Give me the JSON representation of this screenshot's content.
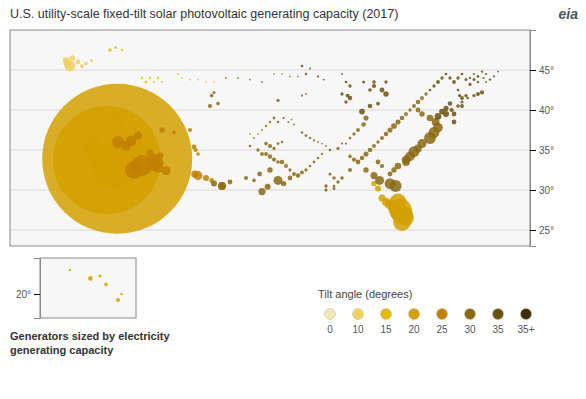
{
  "chart_data": [
    {
      "type": "bubble",
      "title": "U.S. utility-scale fixed-tilt solar photovoltaic generating capacity (2017)",
      "annotations": [
        "Generators sized by electricity",
        "generating capacity",
        "Tilt angle (degrees)",
        "eia"
      ],
      "series": [
        {
          "name": "0",
          "color": "#f5e8b0",
          "x": [],
          "values": [],
          "sizes": []
        },
        {
          "name": "10",
          "color": "#f0d060",
          "x": [
            -122.5,
            -122.8,
            -123.0,
            -122.2,
            -121.5,
            -121.0,
            -120.5,
            -119.8
          ],
          "values": [
            45.5,
            45.8,
            46.2,
            46.5,
            46.0,
            45.5,
            45.8,
            46.2
          ],
          "sizes": [
            180,
            140,
            110,
            90,
            80,
            70,
            60,
            50
          ]
        },
        {
          "name": "15",
          "color": "#e8b800",
          "x": [
            -121.3,
            -121.4,
            -120.8,
            -121.0,
            -122.0,
            -117.5,
            -116.8,
            -113.0,
            -116.0,
            -113.5,
            -112.5,
            -111.5,
            -112.0,
            -111.0,
            -109.0,
            -108.5,
            -107.5,
            -106.5,
            -105.5,
            -104.5
          ],
          "values": [
            38.7,
            37.0,
            39.1,
            37.5,
            38.5,
            47.5,
            47.8,
            43.5,
            47.5,
            44.0,
            44.0,
            44.0,
            43.5,
            43.5,
            44.5,
            44.0,
            43.8,
            43.8,
            43.5,
            43.5
          ],
          "sizes": [
            150,
            100,
            90,
            80,
            60,
            55,
            45,
            42,
            38,
            38,
            38,
            38,
            32,
            32,
            32,
            28,
            28,
            28,
            28,
            28
          ]
        },
        {
          "name": "20",
          "color": "#d4a000",
          "x": [
            -116.6,
            -117.9,
            -117.1,
            -115.0,
            -116.96,
            -116.7,
            -118.5,
            -81.2,
            -116.02,
            -114.6,
            -80.8,
            -117.3,
            -81.0,
            -117.55,
            -81.5,
            -80.5,
            -116.2,
            -116.3,
            -119.6,
            -81.5,
            -115.47,
            -115.6,
            -82.0,
            -117.0,
            -118.9,
            -120.2,
            -82.5,
            -114.98,
            -83.0,
            -119.2,
            -116.5,
            -83.5,
            -120.0,
            -116.0,
            -84.0,
            -116.6,
            -84.5,
            -119.5,
            -117.1,
            -119.8
          ],
          "values": [
            33.9,
            33.75,
            32.85,
            33.9,
            33.83,
            33.0,
            34.05,
            27.5,
            34.5,
            35.2,
            26.8,
            32.5,
            26.0,
            33.42,
            28.5,
            26.5,
            33.65,
            33.3,
            35.7,
            27.0,
            33.73,
            32.8,
            27.8,
            34.57,
            33.8,
            34.8,
            28.2,
            34.08,
            28.5,
            35.45,
            35.0,
            29.0,
            35.3,
            38.4,
            30.2,
            39.0,
            30.8,
            36.1,
            39.4,
            36.8
          ],
          "sizes": [
            2500,
            1800,
            700,
            600,
            580,
            500,
            400,
            380,
            350,
            350,
            320,
            300,
            300,
            280,
            280,
            260,
            250,
            250,
            250,
            240,
            200,
            200,
            200,
            180,
            180,
            180,
            170,
            150,
            140,
            130,
            120,
            120,
            100,
            100,
            100,
            90,
            90,
            80,
            80,
            70
          ]
        },
        {
          "name": "25",
          "color": "#c08000",
          "x": [
            -113.5,
            -114.5,
            -111.85,
            -112.1,
            -116.5,
            -111.5,
            -114.9,
            -115.5,
            -110.5,
            -106.5,
            -114.0,
            -103.5,
            -112.5,
            -106.9,
            -111.2,
            -105.5,
            -111.0,
            -104.8,
            -107.0,
            -107.5,
            -106.8,
            -109.5,
            -106.5
          ],
          "values": [
            33.05,
            32.5,
            33.45,
            33.3,
            36.0,
            32.85,
            36.1,
            35.5,
            32.4,
            31.8,
            36.8,
            30.5,
            34.6,
            32.0,
            34.3,
            31.5,
            37.5,
            31.2,
            35.4,
            37.5,
            35.0,
            37.2,
            34.5
          ],
          "sizes": [
            350,
            300,
            280,
            220,
            200,
            180,
            180,
            160,
            150,
            150,
            140,
            130,
            120,
            120,
            100,
            100,
            90,
            80,
            80,
            70,
            70,
            60,
            60
          ]
        },
        {
          "name": "30",
          "color": "#8b6914",
          "x": [
            -81.8,
            -77.5,
            -82.5,
            -79.5,
            -77.0,
            -80.0,
            -76.5,
            -96.5,
            -83.8,
            -78.5,
            -80.5,
            -103.5,
            -79.0,
            -76.8,
            -80.5,
            -98.5,
            -84.5,
            -77.5,
            -81.5,
            -97.8,
            -104.5,
            -82.0,
            -95.8,
            -97.5,
            -82.0,
            -85.5,
            -78.5,
            -85.5,
            -82.5,
            -81.5,
            -85.5,
            -95.0,
            -102.5,
            -98.8,
            -82.5,
            -84.0,
            -79.0,
            -86.5,
            -86.0,
            -85.0,
            -83.0,
            -81.0,
            -79.0,
            -97.5,
            -94.0,
            -96.0,
            -85.8,
            -100.5,
            -97.0,
            -83.5,
            -87.0,
            -105.0,
            -87.5,
            -97.5,
            -84.5,
            -83.5,
            -80.5,
            -79.5,
            -78.5,
            -98.0,
            -98.5,
            -93.5,
            -94.5,
            -95.5,
            -86.5,
            -99.5,
            -96.5,
            -87.5,
            -104.8,
            -104.0,
            -90.5,
            -88.5,
            -98.0,
            -89.5,
            -96.5,
            -84.0,
            -80.0,
            -78.0,
            -97.0,
            -99.0,
            -93.0,
            -95.0,
            -90.5,
            -89.0,
            -87.0,
            -89.0,
            -104.5,
            -89.5,
            -90.0,
            -97.0,
            -93.0,
            -92.0,
            -96.5,
            -100.0,
            -89.5,
            -87.5,
            -90.0,
            -97.5,
            -93.5,
            -92.5,
            -91.5,
            -92.5,
            -96.5,
            -96.0,
            -93.5,
            -98.0,
            -92.0,
            -91.0,
            -95.8,
            -88.0,
            -88.5,
            -93.0,
            -103.0,
            -100.0,
            -98.5,
            -98.5,
            -99.5,
            -91.5,
            -90.5,
            -94.5,
            -95.2,
            -101.5,
            -97.0,
            -96.0,
            -95.0,
            -94.0,
            -99.0,
            -100.0,
            -91.0,
            -94.8
          ],
          "values": [
            30.5,
            36.5,
            30.8,
            34.8,
            37.2,
            34.2,
            37.8,
            31.2,
            31.2,
            35.8,
            33.8,
            30.5,
            35.2,
            38.5,
            33.5,
            29.8,
            31.8,
            39.0,
            33.0,
            30.4,
            30.8,
            38.0,
            30.8,
            32.5,
            32.5,
            32.5,
            39.5,
            34.5,
            37.5,
            38.5,
            39.0,
            31.5,
            31.0,
            32.0,
            32.0,
            33.5,
            40.0,
            33.5,
            34.0,
            35.0,
            37.0,
            39.0,
            41.0,
            34.2,
            31.8,
            33.5,
            38.2,
            31.5,
            33.8,
            33.0,
            33.8,
            40.5,
            32.5,
            35.5,
            35.5,
            36.5,
            39.5,
            40.5,
            41.5,
            34.5,
            34.5,
            32.2,
            32.0,
            33.0,
            37.5,
            31.2,
            33.5,
            34.2,
            41.8,
            40.8,
            30.5,
            31.5,
            35.8,
            31.5,
            41.2,
            36.0,
            40.0,
            42.0,
            35.2,
            35.0,
            32.5,
            32.5,
            30.0,
            31.0,
            37.0,
            35.2,
            42.2,
            30.2,
            32.0,
            39.0,
            36.8,
            33.5,
            35.8,
            35.5,
            30.5,
            36.5,
            35.0,
            38.5,
            37.2,
            36.5,
            34.0,
            33.0,
            38.5,
            36.0,
            41.8,
            38.0,
            36.2,
            34.5,
            39.0,
            35.8,
            35.8,
            42.0,
            44.0,
            43.8,
            43.5,
            37.5,
            36.5,
            36.0,
            35.5,
            38.2,
            38.5,
            44.0,
            44.5,
            44.5,
            44.2,
            44.2,
            37.0,
            37.0,
            35.8,
            38.8
          ],
          "sizes": [
            200,
            200,
            180,
            180,
            180,
            160,
            160,
            150,
            150,
            150,
            140,
            130,
            130,
            130,
            130,
            120,
            120,
            110,
            110,
            100,
            100,
            95,
            90,
            90,
            90,
            90,
            90,
            85,
            85,
            85,
            85,
            80,
            80,
            80,
            80,
            80,
            80,
            80,
            75,
            75,
            75,
            75,
            75,
            75,
            75,
            75,
            75,
            70,
            70,
            70,
            70,
            70,
            70,
            70,
            65,
            65,
            65,
            65,
            65,
            65,
            65,
            65,
            65,
            65,
            65,
            60,
            60,
            60,
            60,
            60,
            60,
            60,
            60,
            58,
            55,
            55,
            55,
            55,
            55,
            55,
            55,
            55,
            55,
            55,
            55,
            55,
            50,
            50,
            50,
            48,
            46,
            46,
            45,
            45,
            45,
            45,
            45,
            42,
            42,
            42,
            42,
            42,
            42,
            40,
            38,
            38,
            38,
            38,
            38,
            38,
            38,
            32,
            32,
            32,
            32,
            32,
            32,
            32,
            32,
            32,
            32,
            30,
            28,
            28,
            28,
            28,
            28,
            28,
            28,
            28
          ]
        },
        {
          "name": "35",
          "color": "#6b5010",
          "x": [
            -76.5,
            -75.5,
            -76.0,
            -86.0,
            -83.0,
            -75.5,
            -74.5,
            -74.5,
            -83.5,
            -75.0,
            -87.5,
            -85.0,
            -74.8,
            -71.0,
            -84.5,
            -71.5,
            -73.5,
            -73.5,
            -87.8,
            -84.0,
            -74.5,
            -76.5,
            -74.0,
            -85.0,
            -84.5,
            -72.0,
            -73.8,
            -73.0,
            -88.5,
            -88.0,
            -87.5,
            -83.0,
            -76.0,
            -75.0,
            -74.0,
            -72.5,
            -77.0,
            -73.5,
            -85.8,
            -73.0,
            -72.0,
            -72.8,
            -74.0,
            -93.5,
            -88.0,
            -75.5,
            -73.5,
            -71.5,
            -77.5,
            -71.5,
            -93.0,
            -71.0,
            -70.0,
            -72.5,
            -91.5,
            -70.8,
            -69.5,
            -70.5,
            -72.0,
            -92.5,
            -90.8,
            -69.0,
            -70.5,
            -88.5
          ],
          "values": [
            39.2,
            39.5,
            39.8,
            39.8,
            42.0,
            40.2,
            39.5,
            38.5,
            42.5,
            40.8,
            41.5,
            40.5,
            40.0,
            42.2,
            43.0,
            42.0,
            40.5,
            41.5,
            41.8,
            40.8,
            43.5,
            43.5,
            40.5,
            42.5,
            43.5,
            41.8,
            41.8,
            41.8,
            42.0,
            41.0,
            43.0,
            43.5,
            44.0,
            44.0,
            44.0,
            43.2,
            43.0,
            41.0,
            43.5,
            43.8,
            43.8,
            41.5,
            42.5,
            45.5,
            43.5,
            44.5,
            44.5,
            44.2,
            42.5,
            43.5,
            44.5,
            44.8,
            43.8,
            44.0,
            44.2,
            44.0,
            44.2,
            44.5,
            44.5,
            45.2,
            43.8,
            44.8,
            43.5,
            44.5
          ],
          "sizes": [
            110,
            100,
            95,
            95,
            90,
            85,
            80,
            80,
            80,
            75,
            75,
            75,
            70,
            70,
            70,
            65,
            65,
            65,
            65,
            65,
            65,
            65,
            60,
            60,
            60,
            55,
            55,
            55,
            55,
            55,
            55,
            55,
            55,
            55,
            55,
            55,
            55,
            50,
            50,
            50,
            50,
            45,
            45,
            45,
            45,
            45,
            45,
            45,
            45,
            42,
            40,
            40,
            40,
            38,
            38,
            36,
            36,
            36,
            32,
            32,
            32,
            32,
            30,
            30
          ]
        },
        {
          "name": "35+",
          "color": "#3d2e00",
          "x": [],
          "values": [],
          "sizes": []
        }
      ],
      "xlim": [
        -130,
        -65
      ],
      "ylim": [
        23,
        50
      ],
      "yticks": [
        {
          "value": 25,
          "label": "25°"
        },
        {
          "value": 30,
          "label": "30°"
        },
        {
          "value": 35,
          "label": "35°"
        },
        {
          "value": 40,
          "label": "40°"
        },
        {
          "value": 45,
          "label": "45°"
        }
      ],
      "grid": true,
      "tick_labels": "y",
      "legend": "bottom right"
    },
    {
      "type": "bubble",
      "x": [
        -157.8,
        -155.5,
        -156.5,
        -157.0,
        -155.2,
        -159.5
      ],
      "values": [
        21.3,
        19.5,
        20.8,
        21.5,
        20.0,
        22.0
      ],
      "sizes": [
        80,
        70,
        60,
        50,
        40,
        40
      ],
      "color": "#d4a000",
      "xlim": [
        -162,
        -154
      ],
      "ylim": [
        18,
        23
      ],
      "yticks": [
        {
          "value": 20,
          "label": "20°"
        }
      ],
      "tick_labels": "y"
    }
  ]
}
